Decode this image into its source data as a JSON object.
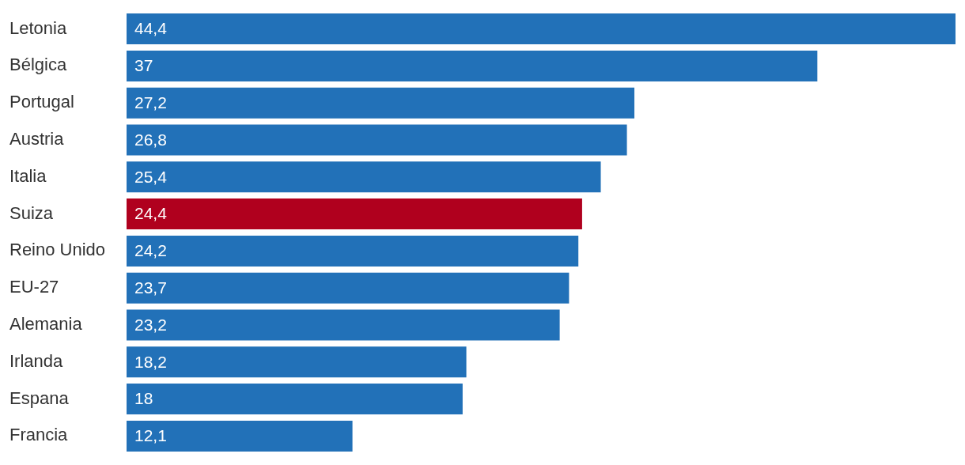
{
  "chart_data": {
    "type": "bar",
    "orientation": "horizontal",
    "categories": [
      "Letonia",
      "Bélgica",
      "Portugal",
      "Austria",
      "Italia",
      "Suiza",
      "Reino Unido",
      "EU-27",
      "Alemania",
      "Irlanda",
      "Espana",
      "Francia"
    ],
    "values": [
      44.4,
      37,
      27.2,
      26.8,
      25.4,
      24.4,
      24.2,
      23.7,
      23.2,
      18.2,
      18,
      12.1
    ],
    "colors": [
      "#2271b8",
      "#2271b8",
      "#2271b8",
      "#2271b8",
      "#2271b8",
      "#b0001e",
      "#2271b8",
      "#2271b8",
      "#2271b8",
      "#2271b8",
      "#2271b8",
      "#2271b8"
    ],
    "value_labels": [
      "44,4",
      "37",
      "27,2",
      "26,8",
      "25,4",
      "24,4",
      "24,2",
      "23,7",
      "23,2",
      "18,2",
      "18",
      "12,1"
    ],
    "xlim": [
      0,
      44.4
    ],
    "tick_labels": "y",
    "grid": false,
    "legend": false
  }
}
